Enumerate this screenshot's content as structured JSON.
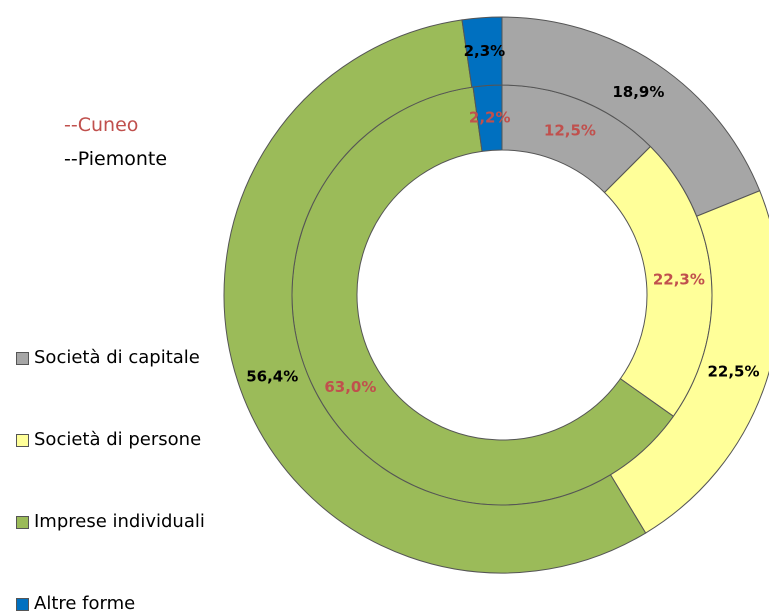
{
  "chart_data": {
    "type": "donut",
    "categories": [
      "Società di capitale",
      "Società di persone",
      "Imprese individuali",
      "Altre forme"
    ],
    "colors": [
      "#a6a6a6",
      "#ffff99",
      "#9bbb59",
      "#0070c0"
    ],
    "series": [
      {
        "name": "--Cuneo",
        "color": "#c0504d",
        "values": [
          12.5,
          22.3,
          63.0,
          2.2
        ],
        "value_labels": [
          "12,5%",
          "22,3%",
          "63,0%",
          "2,2%"
        ]
      },
      {
        "name": "--Piemonte",
        "color": "#000000",
        "values": [
          18.9,
          22.5,
          56.4,
          2.3
        ],
        "value_labels": [
          "18,9%",
          "22,5%",
          "56,4%",
          "2,3%"
        ]
      }
    ]
  }
}
